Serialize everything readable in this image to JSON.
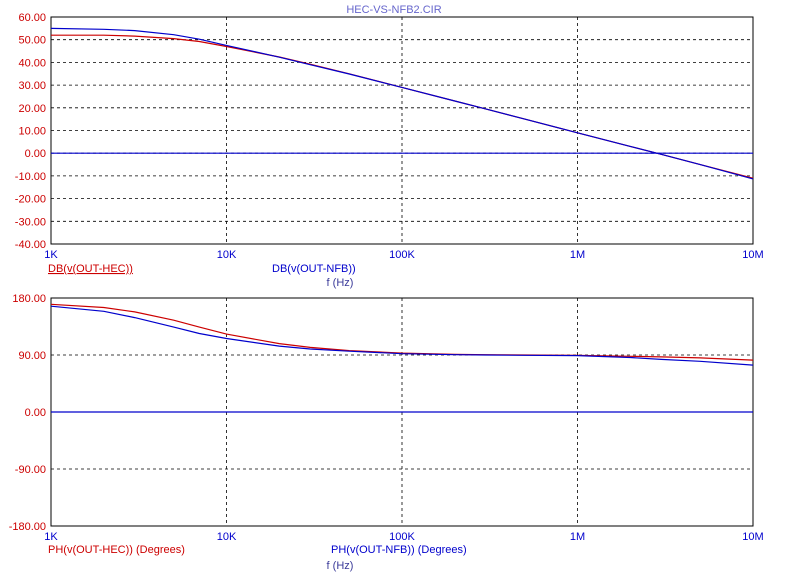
{
  "chart_data": [
    {
      "type": "line",
      "title": "HEC-VS-NFB2.CIR",
      "xscale": "log",
      "xlim": [
        1000,
        10000000
      ],
      "ylim": [
        -40,
        60
      ],
      "x_ticks": [
        "1K",
        "10K",
        "100K",
        "1M",
        "10M"
      ],
      "y_ticks": [
        "60.00",
        "50.00",
        "40.00",
        "30.00",
        "20.00",
        "10.00",
        "0.00",
        "-10.00",
        "-20.00",
        "-30.00",
        "-40.00"
      ],
      "xlabel": "f (Hz)",
      "grid": true,
      "series": [
        {
          "name": "DB(v(OUT-HEC))",
          "color": "#cc0000",
          "x": [
            1000,
            2000,
            3000,
            5000,
            7000,
            10000,
            20000,
            30000,
            50000,
            100000,
            200000,
            300000,
            500000,
            1000000,
            2000000,
            3000000,
            5000000,
            10000000
          ],
          "y": [
            52,
            52,
            51.6,
            50.5,
            49.2,
            47,
            42.4,
            39.2,
            35,
            29,
            23,
            19.5,
            15,
            9,
            3,
            -0.5,
            -5,
            -11
          ]
        },
        {
          "name": "DB(v(OUT-NFB))",
          "color": "#0000cc",
          "x": [
            1000,
            2000,
            3000,
            5000,
            7000,
            10000,
            20000,
            30000,
            50000,
            100000,
            200000,
            300000,
            500000,
            1000000,
            2000000,
            3000000,
            5000000,
            10000000
          ],
          "y": [
            55,
            54.6,
            54,
            52.2,
            50.2,
            47.5,
            42.3,
            39,
            34.9,
            29,
            23,
            19.5,
            15,
            9,
            3,
            -0.5,
            -5,
            -11.3
          ]
        },
        {
          "name": "",
          "color": "#0000cc",
          "x": [
            1000,
            10000000
          ],
          "y": [
            0,
            0
          ]
        }
      ]
    },
    {
      "type": "line",
      "xscale": "log",
      "xlim": [
        1000,
        10000000
      ],
      "ylim": [
        -180,
        180
      ],
      "x_ticks": [
        "1K",
        "10K",
        "100K",
        "1M",
        "10M"
      ],
      "y_ticks": [
        "180.00",
        "90.00",
        "0.00",
        "-90.00",
        "-180.00"
      ],
      "xlabel": "f (Hz)",
      "grid": true,
      "series": [
        {
          "name": "PH(v(OUT-HEC)) (Degrees)",
          "color": "#cc0000",
          "x": [
            1000,
            2000,
            3000,
            5000,
            7000,
            10000,
            20000,
            30000,
            50000,
            100000,
            200000,
            300000,
            500000,
            1000000,
            2000000,
            3000000,
            5000000,
            10000000
          ],
          "y": [
            170,
            165,
            158,
            145,
            134,
            123,
            108,
            102,
            97,
            93,
            91,
            90.5,
            90,
            89.5,
            88,
            87,
            85.5,
            82
          ]
        },
        {
          "name": "PH(v(OUT-NFB)) (Degrees)",
          "color": "#0000cc",
          "x": [
            1000,
            2000,
            3000,
            5000,
            7000,
            10000,
            20000,
            30000,
            50000,
            100000,
            200000,
            300000,
            500000,
            1000000,
            2000000,
            3000000,
            5000000,
            10000000
          ],
          "y": [
            167,
            159,
            149,
            134,
            124,
            116,
            104,
            99.5,
            96,
            92,
            90.5,
            90,
            89.5,
            89,
            86,
            83,
            80,
            74
          ]
        },
        {
          "name": "",
          "color": "#0000cc",
          "x": [
            1000,
            10000000
          ],
          "y": [
            0,
            0
          ]
        }
      ]
    }
  ]
}
